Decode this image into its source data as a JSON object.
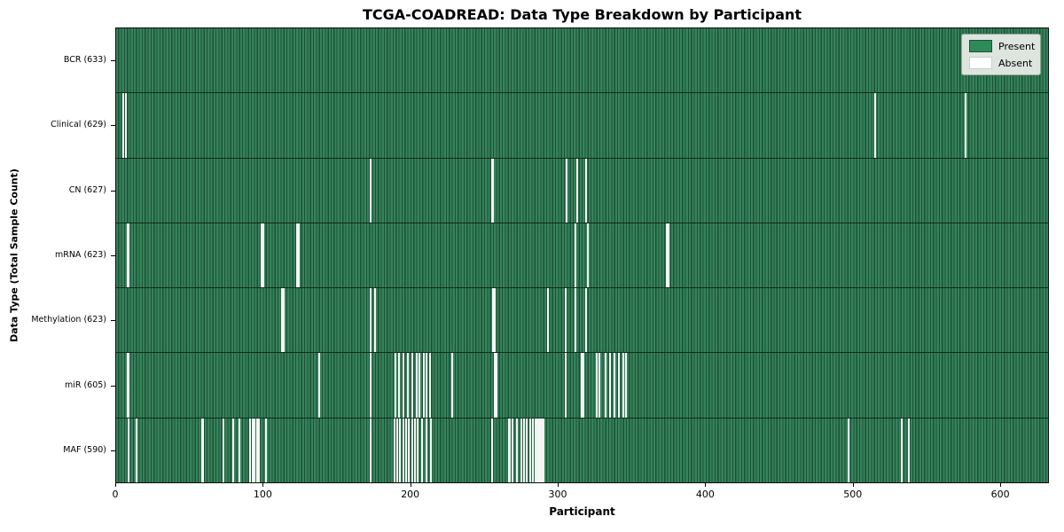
{
  "title": "TCGA-COADREAD: Data Type Breakdown by Participant",
  "axes": {
    "xlabel": "Participant",
    "ylabel": "Data Type (Total Sample Count)"
  },
  "legend": {
    "present_label": "Present",
    "absent_label": "Absent"
  },
  "colors": {
    "present": "#2E8B57",
    "present_dark": "#1C5136",
    "absent": "#F4F6F4",
    "legend_bg": "#DEE4DE"
  },
  "chart_data": {
    "type": "heatmap",
    "title": "TCGA-COADREAD: Data Type Breakdown by Participant",
    "xlabel": "Participant",
    "ylabel": "Data Type (Total Sample Count)",
    "x_range": [
      0,
      633
    ],
    "x_ticks": [
      0,
      100,
      200,
      300,
      400,
      500,
      600
    ],
    "legend": [
      "Present",
      "Absent"
    ],
    "value_encoding": {
      "present": "green",
      "absent": "white"
    },
    "rows": [
      {
        "name": "BCR",
        "label": "BCR (633)",
        "present_count": 633,
        "absent": []
      },
      {
        "name": "Clinical",
        "label": "Clinical (629)",
        "present_count": 629,
        "absent": [
          4,
          6,
          514,
          575
        ]
      },
      {
        "name": "CN",
        "label": "CN (627)",
        "present_count": 627,
        "absent": [
          172,
          254,
          255,
          305,
          312,
          318
        ]
      },
      {
        "name": "mRNA",
        "label": "mRNA (623)",
        "present_count": 623,
        "absent": [
          7,
          8,
          98,
          99,
          122,
          123,
          311,
          319,
          373,
          374
        ]
      },
      {
        "name": "Methylation",
        "label": "Methylation (623)",
        "present_count": 623,
        "absent": [
          112,
          113,
          172,
          175,
          255,
          256,
          292,
          304,
          311,
          318
        ]
      },
      {
        "name": "miR",
        "label": "miR (605)",
        "present_count": 605,
        "absent": [
          7,
          8,
          137,
          172,
          189,
          191,
          194,
          197,
          200,
          203,
          205,
          208,
          210,
          212,
          227,
          256,
          257,
          304,
          315,
          316,
          325,
          327,
          331,
          334,
          337,
          340,
          343,
          345
        ]
      },
      {
        "name": "MAF",
        "label": "MAF (590)",
        "present_count": 590,
        "absent": [
          8,
          13,
          58,
          72,
          79,
          83,
          90,
          92,
          93,
          95,
          96,
          101,
          172,
          188,
          190,
          192,
          194,
          196,
          198,
          200,
          202,
          204,
          207,
          210,
          213,
          254,
          266,
          268,
          271,
          274,
          276,
          278,
          280,
          282,
          284,
          285,
          286,
          287,
          288,
          289,
          496,
          532,
          537
        ]
      }
    ]
  }
}
